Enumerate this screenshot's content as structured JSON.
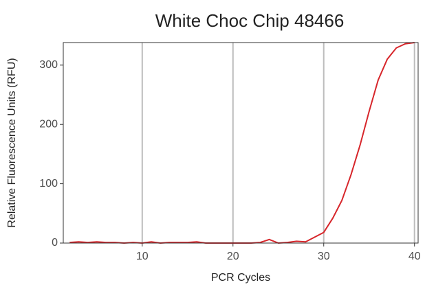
{
  "chart_data": {
    "type": "line",
    "title": "White Choc Chip 48466",
    "x_label": "PCR Cycles",
    "y_label": "Relative Fluorescence Units (RFU)",
    "x": [
      2,
      3,
      4,
      5,
      6,
      7,
      8,
      9,
      10,
      11,
      12,
      13,
      14,
      15,
      16,
      17,
      18,
      19,
      20,
      21,
      22,
      23,
      24,
      25,
      26,
      27,
      28,
      29,
      30,
      31,
      32,
      33,
      34,
      35,
      36,
      37,
      38,
      39,
      40
    ],
    "series": [
      {
        "name": "RFU",
        "color": "#d7262b",
        "values": [
          1,
          2,
          1,
          2,
          1,
          1,
          0,
          1,
          0,
          2,
          0,
          1,
          1,
          1,
          2,
          0,
          0,
          0,
          0,
          0,
          0,
          1,
          6,
          0,
          1,
          3,
          2,
          10,
          18,
          42,
          72,
          115,
          165,
          222,
          275,
          310,
          329,
          336,
          338
        ]
      }
    ],
    "xlim": [
      1.3,
      40.4
    ],
    "xticks": [
      10,
      20,
      30,
      40
    ],
    "ylim": [
      0,
      338
    ],
    "yticks": [
      0,
      100,
      200,
      300
    ],
    "grid": true
  }
}
